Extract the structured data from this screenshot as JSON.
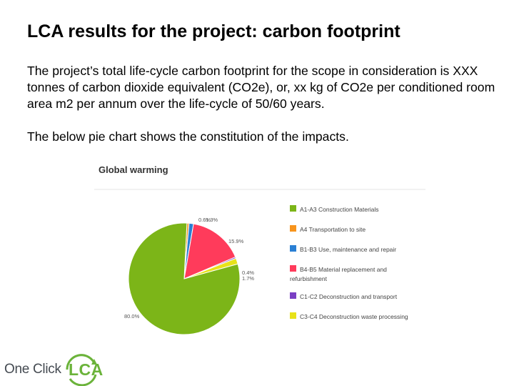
{
  "slide": {
    "title": "LCA results for the project: carbon footprint",
    "paragraph": "The project’s total life-cycle carbon footprint for the scope in consideration is XXX tonnes of carbon dioxide equivalent (CO2e), or, xx kg of CO2e per conditioned room area m2 per annum over the life-cycle of 50/60 years.",
    "caption": "The below pie chart shows the constitution of the impacts."
  },
  "chart_data": {
    "type": "pie",
    "title": "Global warming",
    "legend_position": "right",
    "slices": [
      {
        "label": "A1-A3 Construction Materials",
        "value": 80.0,
        "value_label": "80.0%",
        "color": "#7cb518"
      },
      {
        "label": "A4 Transportation to site",
        "value": 0.6,
        "value_label": "0.6%",
        "color": "#f7941d"
      },
      {
        "label": "B1-B3 Use, maintenance and repair",
        "value": 1.3,
        "value_label": "1.3%",
        "color": "#2a7fd4"
      },
      {
        "label": "B4-B5 Material replacement and refurbishment",
        "value": 15.9,
        "value_label": "15.9%",
        "color": "#ff3b5b"
      },
      {
        "label": "C1-C2 Deconstruction and transport",
        "value": 0.4,
        "value_label": "0.4%",
        "color": "#7a3fc4"
      },
      {
        "label": "C3-C4 Deconstruction waste processing",
        "value": 1.7,
        "value_label": "1.7%",
        "color": "#e8e21a"
      }
    ]
  },
  "logo": {
    "text": "One Click",
    "mark": "LCA"
  }
}
